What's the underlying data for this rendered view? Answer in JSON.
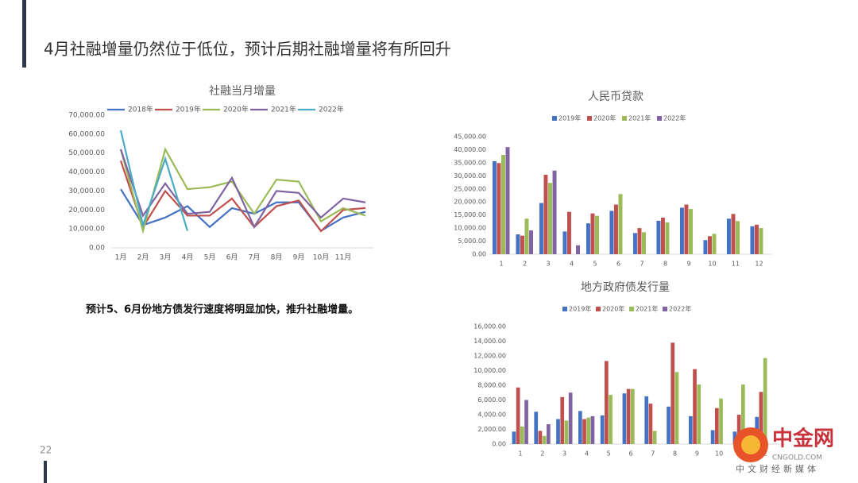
{
  "title": "4月社融增量仍然位于低位，预计后期社融增量将有所回升",
  "note": "预计5、6月份地方债发行速度将明显加快，推升社融增量。",
  "page_number": "22",
  "logo": {
    "name": "中金网",
    "domain": "CNGOLD.COM",
    "slogan": "中文财经新媒体"
  },
  "chart_data": [
    {
      "type": "line",
      "title": "社融当月增量",
      "categories": [
        "1月",
        "2月",
        "3月",
        "4月",
        "5月",
        "6月",
        "7月",
        "8月",
        "9月",
        "10月",
        "11月",
        null
      ],
      "series": [
        {
          "name": "2018年",
          "color": "#4472c4",
          "values": [
            31000,
            12000,
            16000,
            22000,
            11000,
            21000,
            18000,
            24000,
            24000,
            9000,
            16000,
            19000
          ]
        },
        {
          "name": "2019年",
          "color": "#c0504d",
          "values": [
            46000,
            11000,
            30000,
            17000,
            17000,
            26000,
            11000,
            22000,
            25000,
            8800,
            20000,
            21000
          ]
        },
        {
          "name": "2020年",
          "color": "#9bbb59",
          "values": [
            52000,
            9000,
            52000,
            31000,
            32000,
            35000,
            18000,
            36000,
            35000,
            14000,
            21000,
            17000
          ]
        },
        {
          "name": "2021年",
          "color": "#8064a2",
          "values": [
            52000,
            17000,
            34000,
            18000,
            19000,
            37000,
            11000,
            30000,
            29000,
            16000,
            26000,
            24000
          ]
        },
        {
          "name": "2022年",
          "color": "#4bacc6",
          "values": [
            62000,
            12000,
            47000,
            9000,
            null,
            null,
            null,
            null,
            null,
            null,
            null,
            null
          ]
        }
      ],
      "ylim": [
        0,
        70000
      ],
      "yticks": [
        {
          "value": 0,
          "label": "0.00"
        },
        {
          "value": 10000,
          "label": "10,000.00"
        },
        {
          "value": 20000,
          "label": "20,000.00"
        },
        {
          "value": 30000,
          "label": "30,000.00"
        },
        {
          "value": 40000,
          "label": "40,000.00"
        },
        {
          "value": 50000,
          "label": "50,000.00"
        },
        {
          "value": 60000,
          "label": "60,000.00"
        },
        {
          "value": 70000,
          "label": "70,000.00"
        }
      ],
      "grid": false
    },
    {
      "type": "bar",
      "title": "人民币贷款",
      "categories": [
        "1",
        "2",
        "3",
        "4",
        "5",
        "6",
        "7",
        "8",
        "9",
        "10",
        "11",
        "12"
      ],
      "series": [
        {
          "name": "2019年",
          "color": "#4472c4",
          "values": [
            35600,
            7600,
            19600,
            8700,
            11800,
            16600,
            8100,
            12800,
            17800,
            5400,
            13600,
            10700
          ]
        },
        {
          "name": "2020年",
          "color": "#c0504d",
          "values": [
            34900,
            7100,
            30400,
            16200,
            15600,
            19000,
            10000,
            14000,
            19000,
            6900,
            15400,
            11300
          ]
        },
        {
          "name": "2021年",
          "color": "#9bbb59",
          "values": [
            38000,
            13600,
            27300,
            null,
            14700,
            23000,
            8400,
            12200,
            17300,
            7800,
            12700,
            10000
          ]
        },
        {
          "name": "2022年",
          "color": "#8064a2",
          "values": [
            41000,
            9100,
            32000,
            3400,
            null,
            null,
            null,
            null,
            null,
            null,
            null,
            null
          ]
        }
      ],
      "ylim": [
        0,
        45000
      ],
      "yticks": [
        {
          "value": 0,
          "label": "0.00"
        },
        {
          "value": 5000,
          "label": "5,000.00"
        },
        {
          "value": 10000,
          "label": "10,000.00"
        },
        {
          "value": 15000,
          "label": "15,000.00"
        },
        {
          "value": 20000,
          "label": "20,000.00"
        },
        {
          "value": 25000,
          "label": "25,000.00"
        },
        {
          "value": 30000,
          "label": "30,000.00"
        },
        {
          "value": 35000,
          "label": "35,000.00"
        },
        {
          "value": 40000,
          "label": "40,000.00"
        },
        {
          "value": 45000,
          "label": "45,000.00"
        }
      ],
      "grid": false
    },
    {
      "type": "bar",
      "title": "地方政府债发行量",
      "categories": [
        "1",
        "2",
        "3",
        "4",
        "5",
        "6",
        "7",
        "8",
        "9",
        "10",
        "11",
        "12"
      ],
      "series": [
        {
          "name": "2019年",
          "color": "#4472c4",
          "values": [
            1700,
            4400,
            3400,
            4500,
            3900,
            6900,
            6500,
            5100,
            3800,
            1900,
            1700,
            3700
          ]
        },
        {
          "name": "2020年",
          "color": "#c0504d",
          "values": [
            7700,
            1800,
            6400,
            3400,
            11300,
            7500,
            5500,
            13800,
            10200,
            4900,
            4000,
            7100
          ]
        },
        {
          "name": "2021年",
          "color": "#9bbb59",
          "values": [
            2400,
            1100,
            3200,
            3600,
            6700,
            7500,
            1800,
            9800,
            8100,
            6200,
            8100,
            11700
          ]
        },
        {
          "name": "2022年",
          "color": "#8064a2",
          "values": [
            6000,
            2700,
            7000,
            3800,
            null,
            null,
            null,
            null,
            null,
            null,
            null,
            null
          ]
        }
      ],
      "ylim": [
        0,
        16000
      ],
      "yticks": [
        {
          "value": 0,
          "label": "0.00"
        },
        {
          "value": 2000,
          "label": "2,000.00"
        },
        {
          "value": 4000,
          "label": "4,000.00"
        },
        {
          "value": 6000,
          "label": "6,000.00"
        },
        {
          "value": 8000,
          "label": "8,000.00"
        },
        {
          "value": 10000,
          "label": "10,000.00"
        },
        {
          "value": 12000,
          "label": "12,000.00"
        },
        {
          "value": 14000,
          "label": "14,000.00"
        },
        {
          "value": 16000,
          "label": "16,000.00"
        }
      ],
      "grid": false
    }
  ]
}
